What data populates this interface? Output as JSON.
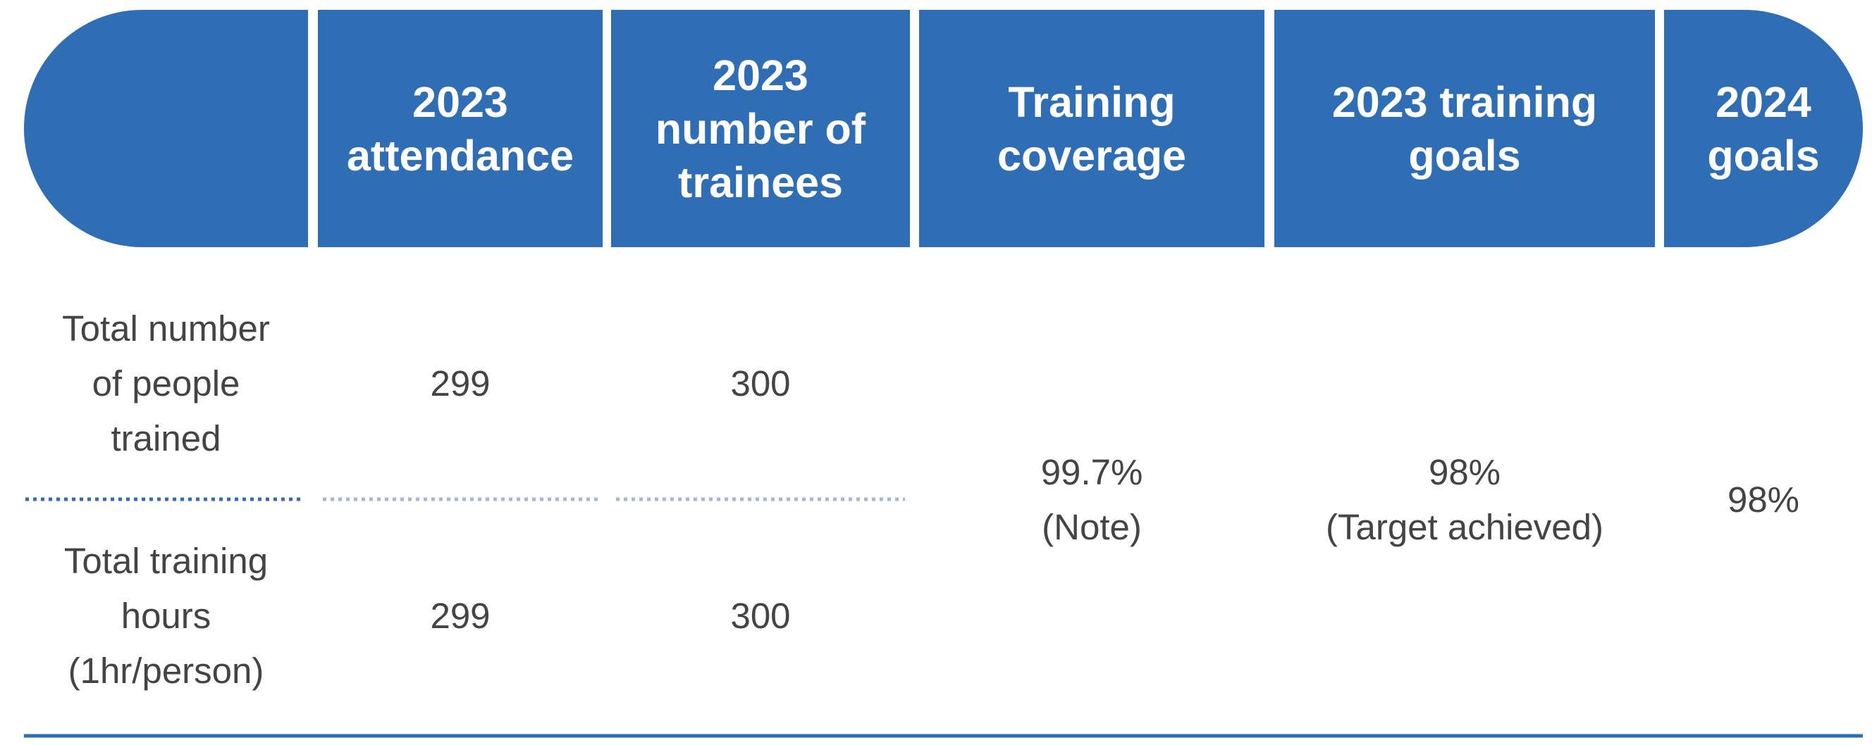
{
  "table": {
    "columns": [
      "2023 attendance",
      "2023 number of trainees",
      "Training coverage",
      "2023 training goals",
      "2024 goals"
    ],
    "rows": [
      {
        "label": "Total number of people trained",
        "values": [
          "299",
          "300"
        ]
      },
      {
        "label": "Total training hours (1hr/person)",
        "values": [
          "299",
          "300"
        ]
      }
    ],
    "merged": [
      {
        "value": "99.7%",
        "note": "(Note)"
      },
      {
        "value": "98%",
        "note": "(Target achieved)"
      },
      {
        "value": "98%"
      }
    ]
  }
}
